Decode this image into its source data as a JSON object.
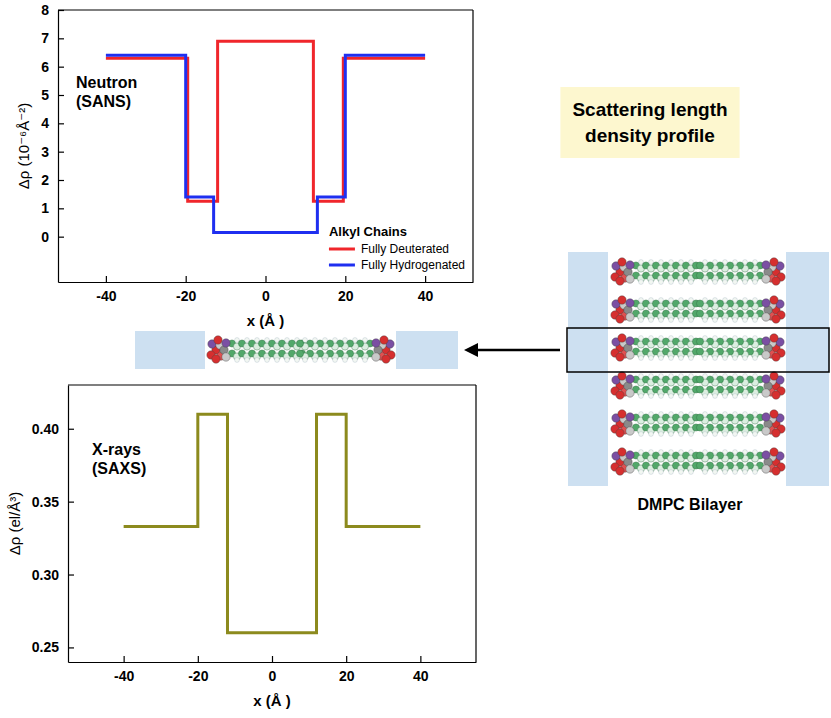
{
  "chart_data": [
    {
      "type": "line",
      "xlabel": "x (Å )",
      "ylabel": "Δρ (10⁻⁶Å⁻²)",
      "annotation": [
        "Neutron",
        "(SANS)"
      ],
      "xlim": [
        -52,
        52
      ],
      "ylim": [
        -1.6,
        8
      ],
      "xticks": [
        -40,
        -20,
        0,
        20,
        40
      ],
      "yticks": [
        0,
        1,
        2,
        3,
        4,
        5,
        6,
        7,
        8
      ],
      "legend": "lower right",
      "legend_title": "Alkyl Chains",
      "series": [
        {
          "name": "Fully Deuterated",
          "color": "#f0262b",
          "x": [
            -40,
            -19.5,
            -19.5,
            -12,
            -12,
            12,
            12,
            19.5,
            19.5,
            40
          ],
          "values": [
            6.3,
            6.3,
            1.25,
            1.25,
            6.9,
            6.9,
            1.25,
            1.25,
            6.3,
            6.3
          ]
        },
        {
          "name": "Fully Hydrogenated",
          "color": "#1f2ff0",
          "x": [
            -40,
            -20,
            -20,
            -13,
            -13,
            13,
            13,
            20,
            20,
            40
          ],
          "values": [
            6.4,
            6.4,
            1.4,
            1.4,
            0.15,
            0.15,
            1.4,
            1.4,
            6.4,
            6.4
          ]
        }
      ]
    },
    {
      "type": "line",
      "xlabel": "x (Å )",
      "ylabel": "Δρ (el/Å³)",
      "annotation": [
        "X-rays",
        "(SAXS)"
      ],
      "xlim": [
        -55,
        55
      ],
      "ylim": [
        0.24,
        0.43
      ],
      "xticks": [
        -40,
        -20,
        0,
        20,
        40
      ],
      "yticks": [
        {
          "value": 0.25,
          "label": "0.25"
        },
        {
          "value": 0.3,
          "label": "0.30"
        },
        {
          "value": 0.35,
          "label": "0.35"
        },
        {
          "value": 0.4,
          "label": "0.40"
        }
      ],
      "series": [
        {
          "color": "#8c8a1e",
          "x": [
            -40,
            -20,
            -20,
            -12,
            -12,
            12,
            12,
            20,
            20,
            40
          ],
          "values": [
            0.333,
            0.333,
            0.41,
            0.41,
            0.26,
            0.26,
            0.41,
            0.41,
            0.333,
            0.333
          ]
        }
      ]
    }
  ],
  "diagram": {
    "title": "Scattering length density profile",
    "label": "DMPC Bilayer"
  }
}
